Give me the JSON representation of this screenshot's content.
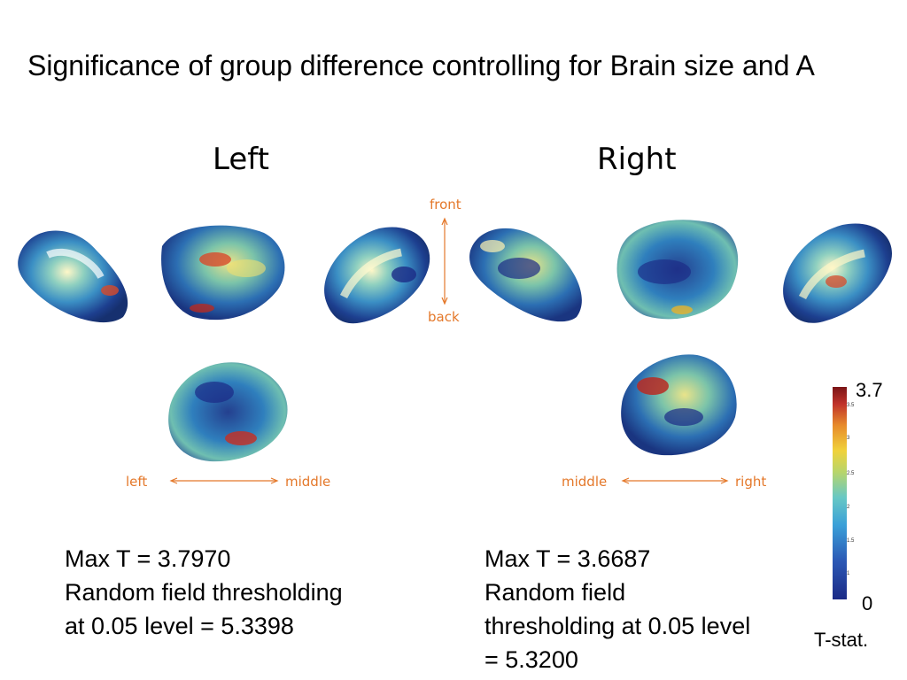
{
  "title": "Significance of group difference controlling for Brain size and A",
  "hemispheres": {
    "left_label": "Left",
    "right_label": "Right"
  },
  "orientation": {
    "front": "front",
    "back": "back",
    "left_axis": {
      "start": "left",
      "end": "middle"
    },
    "right_axis": {
      "start": "middle",
      "end": "right"
    }
  },
  "left_stats": {
    "line1": "Max T = 3.7970",
    "line2": "Random field thresholding",
    "line3": "at 0.05 level = 5.3398"
  },
  "right_stats": {
    "line1": "Max T = 3.6687",
    "line2": "Random field",
    "line3": "thresholding at 0.05 level",
    "line4": "= 5.3200"
  },
  "colorbar": {
    "max_label": "3.7",
    "min_label": "0",
    "unit_label": "T-stat.",
    "ticks": [
      "3.5",
      "3",
      "2.5",
      "2",
      "1.5",
      "1"
    ]
  },
  "colors": {
    "accent_orange": "#e4782a",
    "low": "#1b2a86",
    "high": "#c0322a"
  }
}
